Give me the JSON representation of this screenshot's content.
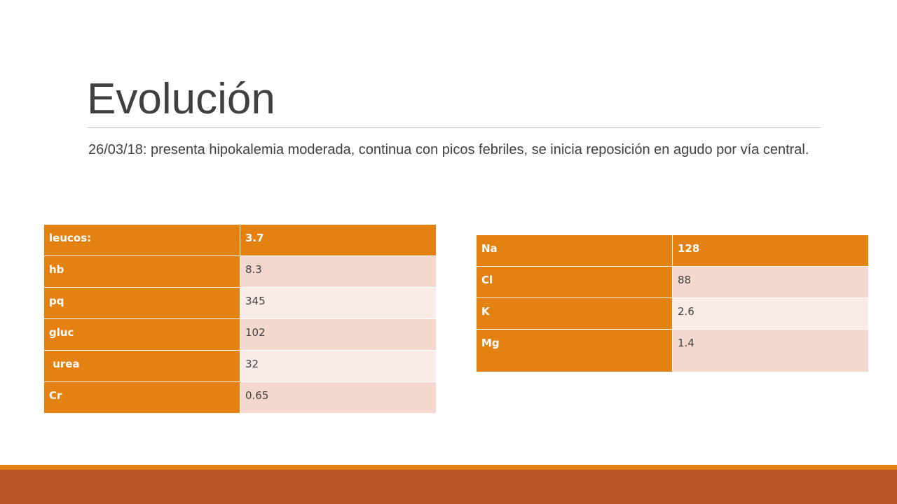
{
  "slide": {
    "title": "Evolución",
    "subtitle": "26/03/18: presenta hipokalemia moderada,  continua con picos febriles, se inicia reposición en agudo por vía central."
  },
  "table_left": {
    "rows": [
      {
        "label": "leucos:",
        "value": "3.7"
      },
      {
        "label": "hb",
        "value": "8.3"
      },
      {
        "label": "pq",
        "value": "345"
      },
      {
        "label": "gluc",
        "value": "102"
      },
      {
        "label": " urea",
        "value": "32"
      },
      {
        "label": "Cr",
        "value": "0.65"
      }
    ]
  },
  "table_right": {
    "rows": [
      {
        "label": "Na",
        "value": "128"
      },
      {
        "label": "Cl",
        "value": "88"
      },
      {
        "label": "K",
        "value": "2.6"
      },
      {
        "label": "Mg",
        "value": "1.4"
      }
    ]
  },
  "colors": {
    "accent_orange": "#e38213",
    "band_dark": "#bb5627",
    "row_shade_1": "#f4d8ce",
    "row_shade_2": "#f9ebe6",
    "text": "#404040"
  }
}
